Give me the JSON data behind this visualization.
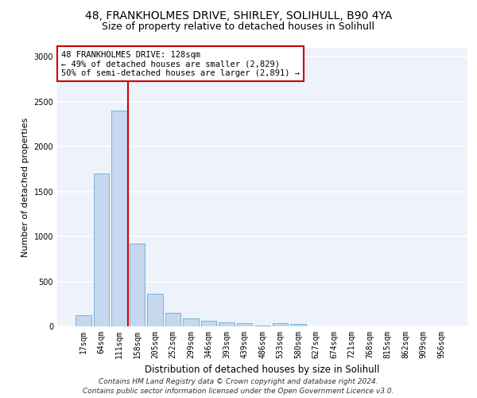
{
  "title_line1": "48, FRANKHOLMES DRIVE, SHIRLEY, SOLIHULL, B90 4YA",
  "title_line2": "Size of property relative to detached houses in Solihull",
  "xlabel": "Distribution of detached houses by size in Solihull",
  "ylabel": "Number of detached properties",
  "bar_color": "#c5d8f0",
  "bar_edge_color": "#6aaad4",
  "categories": [
    "17sqm",
    "64sqm",
    "111sqm",
    "158sqm",
    "205sqm",
    "252sqm",
    "299sqm",
    "346sqm",
    "393sqm",
    "439sqm",
    "486sqm",
    "533sqm",
    "580sqm",
    "627sqm",
    "674sqm",
    "721sqm",
    "768sqm",
    "815sqm",
    "862sqm",
    "909sqm",
    "956sqm"
  ],
  "values": [
    125,
    1700,
    2400,
    920,
    360,
    150,
    90,
    65,
    45,
    35,
    5,
    35,
    30,
    0,
    0,
    0,
    0,
    0,
    0,
    0,
    0
  ],
  "ylim": [
    0,
    3100
  ],
  "yticks": [
    0,
    500,
    1000,
    1500,
    2000,
    2500,
    3000
  ],
  "red_line_x": 2.48,
  "annotation_title": "48 FRANKHOLMES DRIVE: 128sqm",
  "annotation_line2": "← 49% of detached houses are smaller (2,829)",
  "annotation_line3": "50% of semi-detached houses are larger (2,891) →",
  "vline_color": "#cc0000",
  "annotation_box_color": "#cc0000",
  "footer_line1": "Contains HM Land Registry data © Crown copyright and database right 2024.",
  "footer_line2": "Contains public sector information licensed under the Open Government Licence v3.0.",
  "background_color": "#eef2fa",
  "grid_color": "#ffffff",
  "title_fontsize": 10,
  "subtitle_fontsize": 9,
  "tick_fontsize": 7,
  "ylabel_fontsize": 8,
  "xlabel_fontsize": 8.5,
  "footer_fontsize": 6.5,
  "annotation_fontsize": 7.5
}
